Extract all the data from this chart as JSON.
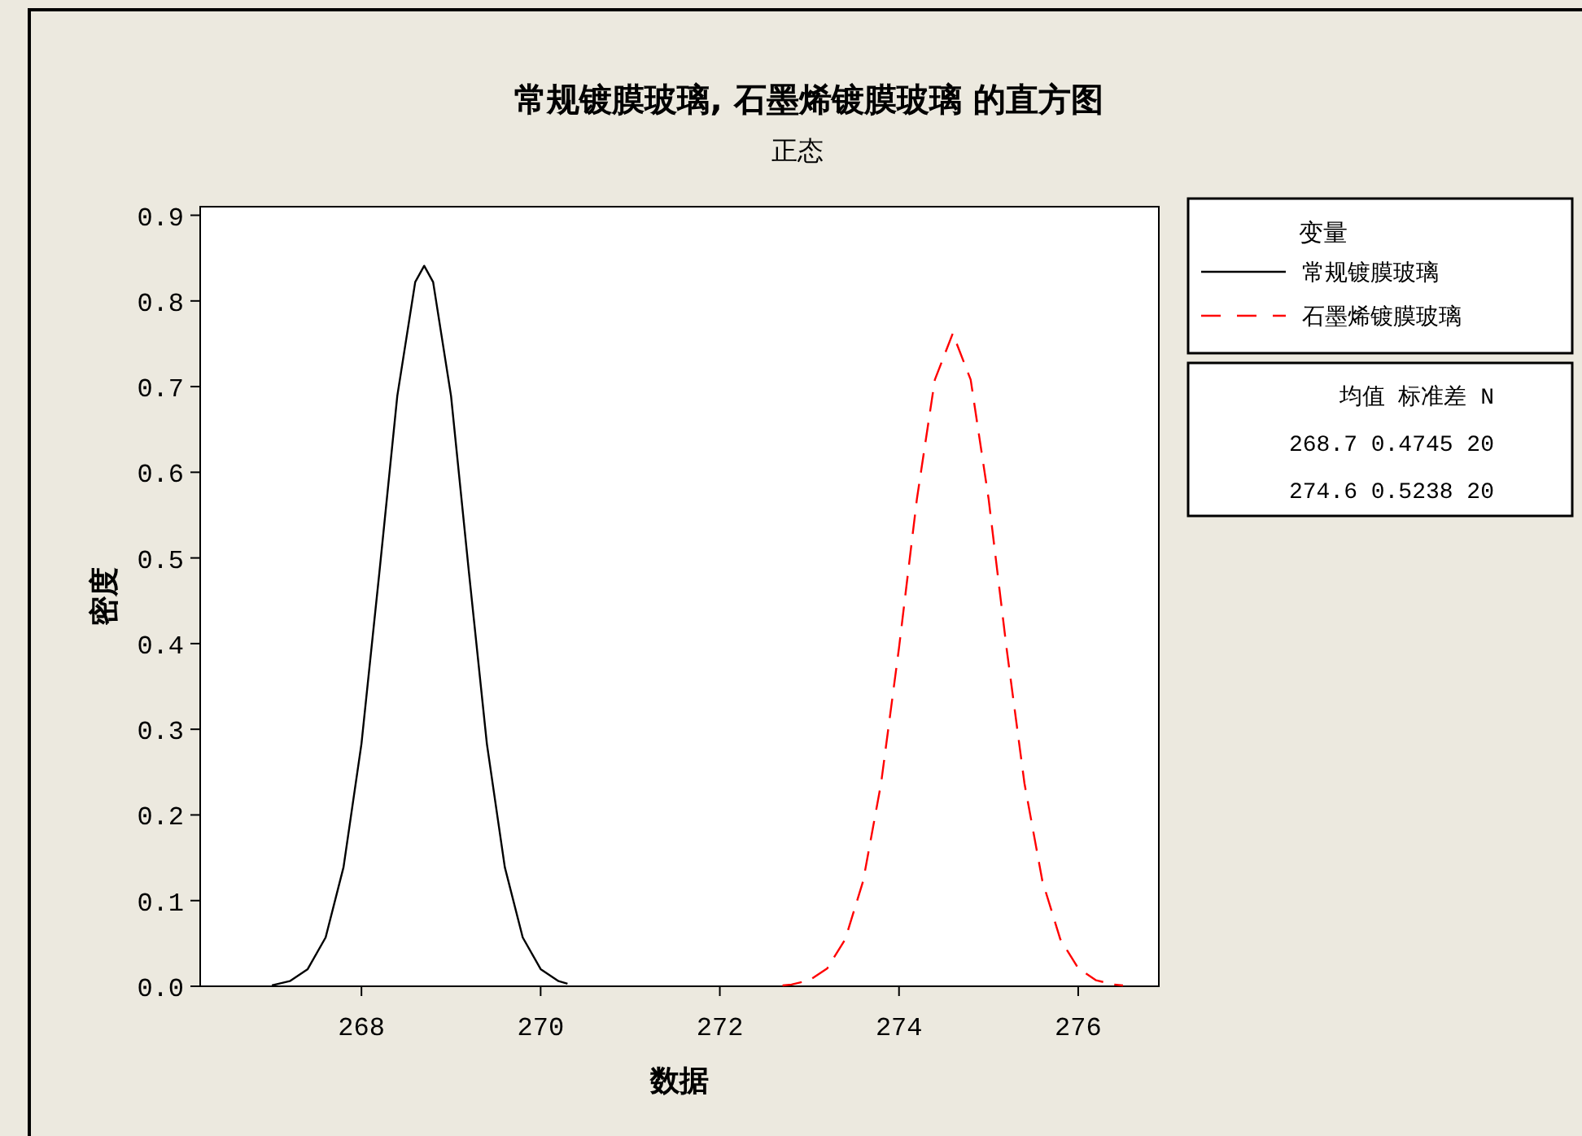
{
  "chart_data": {
    "type": "line",
    "title": "常规镀膜玻璃, 石墨烯镀膜玻璃 的直方图",
    "subtitle": "正态",
    "xlabel": "数据",
    "ylabel": "密度",
    "legend_title": "变量",
    "legend": "right",
    "xlim": [
      266.2,
      276.9
    ],
    "ylim": [
      0,
      0.91
    ],
    "xticks": [
      268,
      270,
      272,
      274,
      276
    ],
    "yticks": [
      {
        "value": 0,
        "label": "0.0"
      },
      {
        "value": 0.1,
        "label": "0.1"
      },
      {
        "value": 0.2,
        "label": "0.2"
      },
      {
        "value": 0.3,
        "label": "0.3"
      },
      {
        "value": 0.4,
        "label": "0.4"
      },
      {
        "value": 0.5,
        "label": "0.5"
      },
      {
        "value": 0.6,
        "label": "0.6"
      },
      {
        "value": 0.7,
        "label": "0.7"
      },
      {
        "value": 0.8,
        "label": "0.8"
      },
      {
        "value": 0.9,
        "label": "0.9"
      }
    ],
    "series": [
      {
        "name": "常规镀膜玻璃",
        "color": "#000000",
        "line_style": "solid",
        "x": [
          267.0,
          267.2,
          267.4,
          267.6,
          267.8,
          268.0,
          268.2,
          268.4,
          268.6,
          268.7,
          268.8,
          269.0,
          269.2,
          269.4,
          269.6,
          269.8,
          270.0,
          270.2,
          270.3
        ],
        "values": [
          0.001,
          0.006,
          0.02,
          0.057,
          0.139,
          0.283,
          0.483,
          0.689,
          0.822,
          0.841,
          0.822,
          0.689,
          0.483,
          0.283,
          0.139,
          0.057,
          0.02,
          0.006,
          0.003
        ]
      },
      {
        "name": "石墨烯镀膜玻璃",
        "color": "#ff0000",
        "line_style": "dashed",
        "x": [
          272.7,
          272.8,
          273.0,
          273.2,
          273.4,
          273.6,
          273.8,
          274.0,
          274.2,
          274.4,
          274.6,
          274.8,
          275.0,
          275.2,
          275.4,
          275.6,
          275.8,
          276.0,
          276.2,
          276.4,
          276.5
        ],
        "values": [
          0.001,
          0.002,
          0.007,
          0.021,
          0.055,
          0.123,
          0.237,
          0.395,
          0.569,
          0.708,
          0.762,
          0.708,
          0.569,
          0.395,
          0.237,
          0.123,
          0.055,
          0.021,
          0.007,
          0.002,
          0.001
        ]
      }
    ],
    "annotations": [
      "均值 标准差 N",
      "268.7 0.4745 20",
      "274.6 0.5238 20"
    ]
  }
}
